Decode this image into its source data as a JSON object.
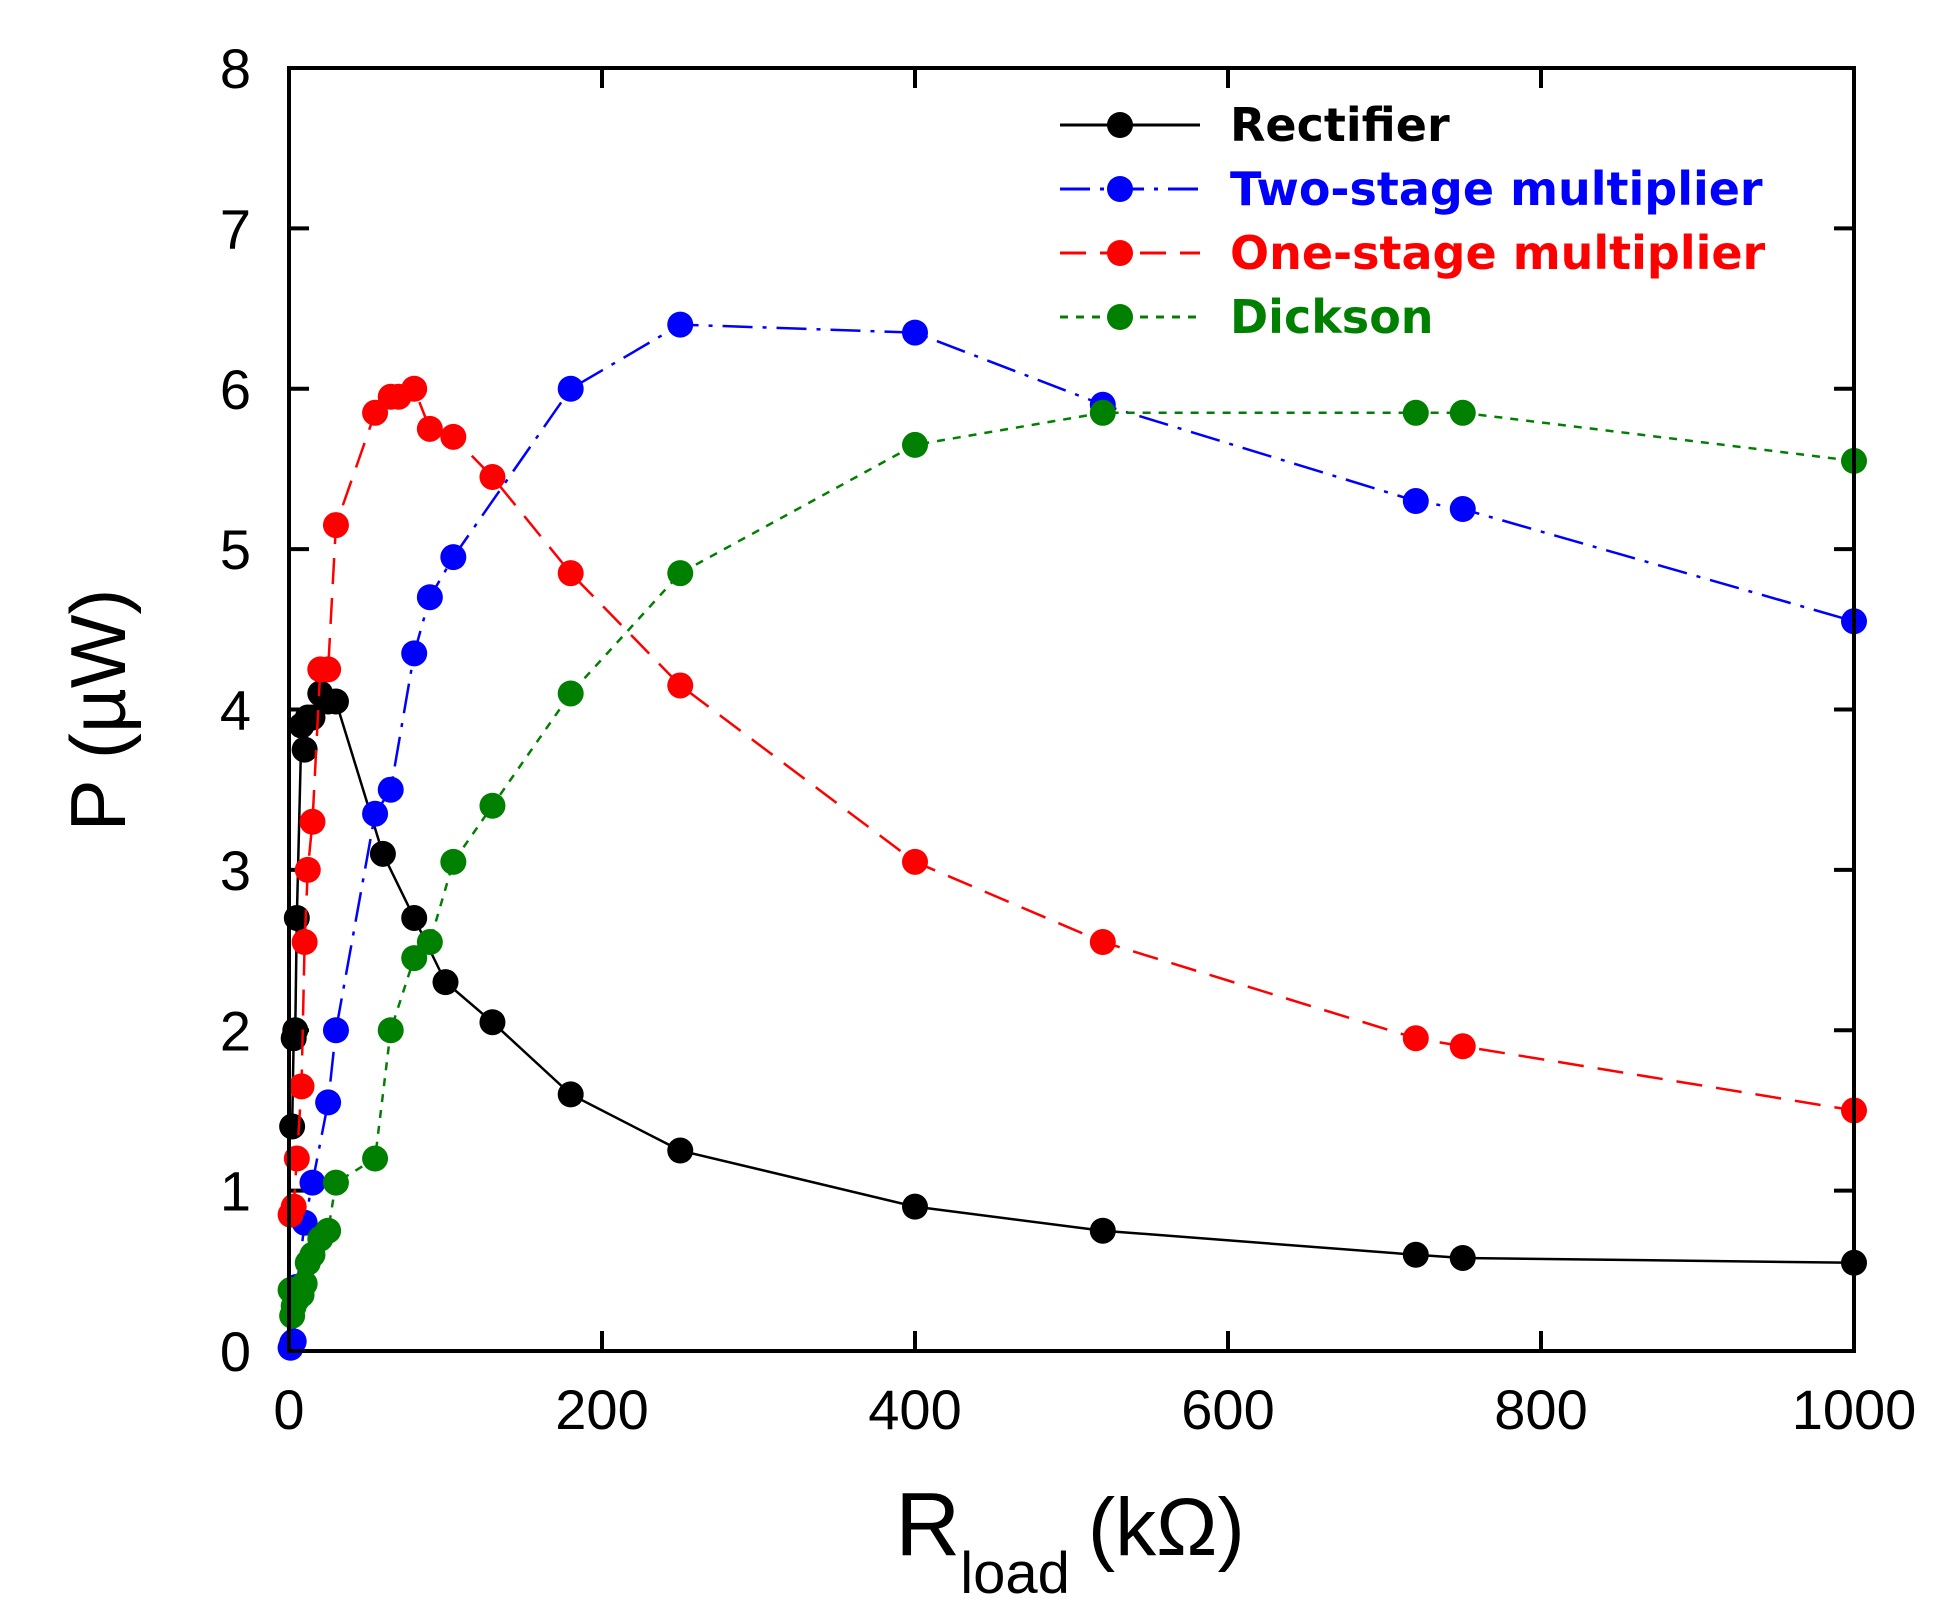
{
  "chart_data": {
    "type": "line",
    "xlabel": "R",
    "xlabel_sub": "load",
    "xlabel_unit": "(kΩ)",
    "ylabel": "P (µW)",
    "xlim": [
      0,
      1000
    ],
    "ylim": [
      0,
      8
    ],
    "xticks": [
      0,
      200,
      400,
      600,
      800,
      1000
    ],
    "yticks": [
      0,
      1,
      2,
      3,
      4,
      5,
      6,
      7,
      8
    ],
    "legend_position": "top-right",
    "series": [
      {
        "name": "Rectifier",
        "color": "#000000",
        "dash": "solid",
        "x": [
          2,
          3,
          4,
          5,
          8,
          10,
          12,
          15,
          20,
          25,
          30,
          60,
          80,
          100,
          130,
          180,
          250,
          400,
          520,
          720,
          750,
          1000
        ],
        "y": [
          1.4,
          1.95,
          2.0,
          2.7,
          3.9,
          3.75,
          3.95,
          3.95,
          4.1,
          4.05,
          4.05,
          3.1,
          2.7,
          2.3,
          2.05,
          1.6,
          1.25,
          0.9,
          0.75,
          0.6,
          0.58,
          0.55
        ]
      },
      {
        "name": "Two-stage multiplier",
        "color": "#0000ff",
        "dash": "dashdot",
        "x": [
          1,
          2,
          3,
          5,
          10,
          15,
          25,
          30,
          55,
          65,
          80,
          90,
          105,
          180,
          250,
          400,
          520,
          720,
          750,
          1000
        ],
        "y": [
          0.02,
          0.05,
          0.06,
          0.4,
          0.8,
          1.05,
          1.55,
          2.0,
          3.35,
          3.5,
          4.35,
          4.7,
          4.95,
          6.0,
          6.4,
          6.35,
          5.9,
          5.3,
          5.25,
          4.55
        ]
      },
      {
        "name": "One-stage multiplier",
        "color": "#ff0000",
        "dash": "dashed",
        "x": [
          1,
          3,
          5,
          8,
          10,
          12,
          15,
          20,
          25,
          30,
          55,
          65,
          70,
          80,
          90,
          105,
          130,
          180,
          250,
          400,
          520,
          720,
          750,
          1000
        ],
        "y": [
          0.85,
          0.9,
          1.2,
          1.65,
          2.55,
          3.0,
          3.3,
          4.25,
          4.25,
          5.15,
          5.85,
          5.95,
          5.95,
          6.0,
          5.75,
          5.7,
          5.45,
          4.85,
          4.15,
          3.05,
          2.55,
          1.95,
          1.9,
          1.5
        ]
      },
      {
        "name": "Dickson",
        "color": "#008000",
        "dash": "dotted",
        "x": [
          1,
          2,
          3,
          5,
          8,
          10,
          12,
          15,
          20,
          25,
          30,
          55,
          65,
          80,
          90,
          105,
          130,
          180,
          250,
          400,
          520,
          720,
          750,
          1000
        ],
        "y": [
          0.38,
          0.22,
          0.28,
          0.32,
          0.35,
          0.42,
          0.55,
          0.6,
          0.7,
          0.75,
          1.05,
          1.2,
          2.0,
          2.45,
          2.55,
          3.05,
          3.4,
          4.1,
          4.85,
          5.65,
          5.85,
          5.85,
          5.85,
          5.55
        ]
      }
    ]
  }
}
